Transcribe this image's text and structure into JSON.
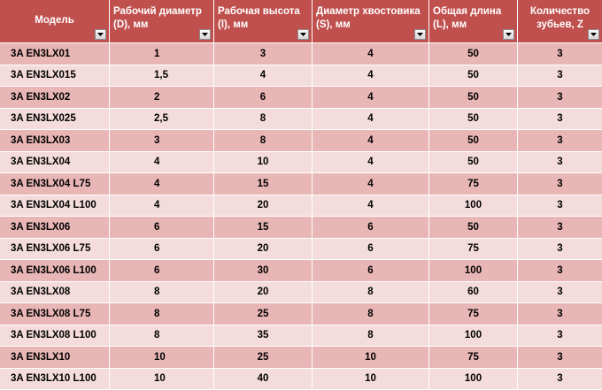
{
  "table": {
    "headers": [
      "Модель",
      "Рабочий диаметр (D), мм",
      "Рабочая высота (l), мм",
      "Диаметр хвостовика (S), мм",
      "Общая длина (L), мм",
      "Количество зубьев, Z"
    ],
    "colors": {
      "header": "#c0504d",
      "row_dark": "#e8b6b5",
      "row_light": "#f3dcdb"
    },
    "rows": [
      [
        "3A EN3LX01",
        "1",
        "3",
        "4",
        "50",
        "3"
      ],
      [
        "3A EN3LX015",
        "1,5",
        "4",
        "4",
        "50",
        "3"
      ],
      [
        "3A EN3LX02",
        "2",
        "6",
        "4",
        "50",
        "3"
      ],
      [
        "3A EN3LX025",
        "2,5",
        "8",
        "4",
        "50",
        "3"
      ],
      [
        "3A EN3LX03",
        "3",
        "8",
        "4",
        "50",
        "3"
      ],
      [
        "3A EN3LX04",
        "4",
        "10",
        "4",
        "50",
        "3"
      ],
      [
        "3A EN3LX04 L75",
        "4",
        "15",
        "4",
        "75",
        "3"
      ],
      [
        "3A EN3LX04 L100",
        "4",
        "20",
        "4",
        "100",
        "3"
      ],
      [
        "3A EN3LX06",
        "6",
        "15",
        "6",
        "50",
        "3"
      ],
      [
        "3A EN3LX06 L75",
        "6",
        "20",
        "6",
        "75",
        "3"
      ],
      [
        "3A EN3LX06 L100",
        "6",
        "30",
        "6",
        "100",
        "3"
      ],
      [
        "3A EN3LX08",
        "8",
        "20",
        "8",
        "60",
        "3"
      ],
      [
        "3A EN3LX08 L75",
        "8",
        "25",
        "8",
        "75",
        "3"
      ],
      [
        "3A EN3LX08 L100",
        "8",
        "35",
        "8",
        "100",
        "3"
      ],
      [
        "3A EN3LX10",
        "10",
        "25",
        "10",
        "75",
        "3"
      ],
      [
        "3A EN3LX10 L100",
        "10",
        "40",
        "10",
        "100",
        "3"
      ]
    ]
  }
}
